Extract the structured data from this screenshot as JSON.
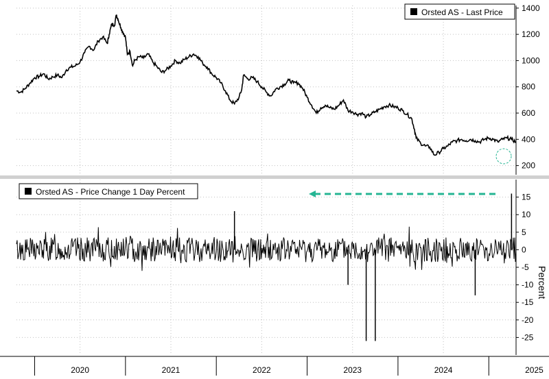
{
  "chart_data": [
    {
      "type": "line",
      "title": "",
      "legend": "Orsted AS - Last Price",
      "legend_position": "top-right",
      "y_axis_side": "right",
      "ylim": [
        130,
        1420
      ],
      "yticks": [
        200,
        400,
        600,
        800,
        1000,
        1200,
        1400
      ],
      "grid": true,
      "x_range": [
        2019.8,
        2025.3
      ],
      "points": [
        [
          2019.8,
          770
        ],
        [
          2019.85,
          760
        ],
        [
          2019.9,
          790
        ],
        [
          2019.95,
          830
        ],
        [
          2020.0,
          870
        ],
        [
          2020.05,
          880
        ],
        [
          2020.1,
          900
        ],
        [
          2020.15,
          860
        ],
        [
          2020.2,
          875
        ],
        [
          2020.25,
          890
        ],
        [
          2020.3,
          870
        ],
        [
          2020.35,
          930
        ],
        [
          2020.4,
          950
        ],
        [
          2020.45,
          960
        ],
        [
          2020.5,
          990
        ],
        [
          2020.55,
          1060
        ],
        [
          2020.6,
          1110
        ],
        [
          2020.65,
          1080
        ],
        [
          2020.7,
          1150
        ],
        [
          2020.75,
          1180
        ],
        [
          2020.8,
          1130
        ],
        [
          2020.82,
          1200
        ],
        [
          2020.85,
          1280
        ],
        [
          2020.88,
          1270
        ],
        [
          2020.9,
          1350
        ],
        [
          2020.92,
          1310
        ],
        [
          2020.95,
          1250
        ],
        [
          2020.97,
          1220
        ],
        [
          2021.0,
          1180
        ],
        [
          2021.02,
          1050
        ],
        [
          2021.05,
          1070
        ],
        [
          2021.08,
          960
        ],
        [
          2021.1,
          1000
        ],
        [
          2021.15,
          1030
        ],
        [
          2021.2,
          1020
        ],
        [
          2021.25,
          1050
        ],
        [
          2021.3,
          990
        ],
        [
          2021.35,
          950
        ],
        [
          2021.4,
          910
        ],
        [
          2021.45,
          930
        ],
        [
          2021.5,
          960
        ],
        [
          2021.55,
          1000
        ],
        [
          2021.6,
          980
        ],
        [
          2021.65,
          1010
        ],
        [
          2021.7,
          1030
        ],
        [
          2021.75,
          1050
        ],
        [
          2021.8,
          1030
        ],
        [
          2021.85,
          980
        ],
        [
          2021.9,
          950
        ],
        [
          2021.95,
          900
        ],
        [
          2022.0,
          870
        ],
        [
          2022.05,
          830
        ],
        [
          2022.1,
          770
        ],
        [
          2022.15,
          700
        ],
        [
          2022.2,
          670
        ],
        [
          2022.25,
          720
        ],
        [
          2022.28,
          780
        ],
        [
          2022.3,
          890
        ],
        [
          2022.35,
          860
        ],
        [
          2022.4,
          870
        ],
        [
          2022.45,
          840
        ],
        [
          2022.5,
          800
        ],
        [
          2022.55,
          760
        ],
        [
          2022.6,
          730
        ],
        [
          2022.65,
          780
        ],
        [
          2022.7,
          800
        ],
        [
          2022.75,
          820
        ],
        [
          2022.8,
          850
        ],
        [
          2022.85,
          830
        ],
        [
          2022.9,
          830
        ],
        [
          2022.95,
          790
        ],
        [
          2023.0,
          720
        ],
        [
          2023.05,
          660
        ],
        [
          2023.1,
          600
        ],
        [
          2023.15,
          640
        ],
        [
          2023.2,
          660
        ],
        [
          2023.25,
          640
        ],
        [
          2023.3,
          630
        ],
        [
          2023.35,
          660
        ],
        [
          2023.4,
          700
        ],
        [
          2023.45,
          620
        ],
        [
          2023.5,
          610
        ],
        [
          2023.55,
          590
        ],
        [
          2023.6,
          600
        ],
        [
          2023.65,
          570
        ],
        [
          2023.7,
          590
        ],
        [
          2023.75,
          610
        ],
        [
          2023.8,
          630
        ],
        [
          2023.85,
          650
        ],
        [
          2023.9,
          660
        ],
        [
          2023.95,
          650
        ],
        [
          2024.0,
          640
        ],
        [
          2024.05,
          620
        ],
        [
          2024.1,
          590
        ],
        [
          2024.15,
          560
        ],
        [
          2024.18,
          480
        ],
        [
          2024.2,
          410
        ],
        [
          2024.25,
          370
        ],
        [
          2024.3,
          350
        ],
        [
          2024.35,
          340
        ],
        [
          2024.4,
          280
        ],
        [
          2024.45,
          300
        ],
        [
          2024.5,
          330
        ],
        [
          2024.55,
          350
        ],
        [
          2024.6,
          380
        ],
        [
          2024.65,
          390
        ],
        [
          2024.7,
          400
        ],
        [
          2024.75,
          390
        ],
        [
          2024.8,
          400
        ],
        [
          2024.85,
          390
        ],
        [
          2024.9,
          380
        ],
        [
          2024.95,
          400
        ],
        [
          2025.0,
          410
        ],
        [
          2025.05,
          400
        ],
        [
          2025.1,
          380
        ],
        [
          2025.15,
          400
        ],
        [
          2025.2,
          410
        ],
        [
          2025.25,
          400
        ],
        [
          2025.3,
          380
        ]
      ]
    },
    {
      "type": "line",
      "title": "",
      "legend": "Orsted AS - Price Change 1 Day Percent",
      "legend_position": "top-left",
      "y_axis_side": "right",
      "ylabel": "Percent",
      "ylim": [
        -30,
        20
      ],
      "yticks": [
        15,
        10,
        5,
        0,
        -5,
        -10,
        -15,
        -20,
        -25
      ],
      "grid": true,
      "x_range": [
        2019.8,
        2025.3
      ],
      "spikes": [
        {
          "x": 2022.2,
          "value": 11
        },
        {
          "x": 2023.45,
          "value": -10
        },
        {
          "x": 2023.65,
          "value": -26
        },
        {
          "x": 2023.75,
          "value": -26
        },
        {
          "x": 2024.85,
          "value": -13
        },
        {
          "x": 2025.25,
          "value": 16
        }
      ],
      "annotation": "dashed arrow pointing left"
    }
  ],
  "x_axis": {
    "labels": [
      {
        "text": "2020",
        "x": 2020.0
      },
      {
        "text": "2021",
        "x": 2021.0
      },
      {
        "text": "2022",
        "x": 2022.0
      },
      {
        "text": "2023",
        "x": 2023.0
      },
      {
        "text": "2024",
        "x": 2024.0
      },
      {
        "text": "2025",
        "x": 2025.0
      }
    ]
  },
  "colors": {
    "series": "#000000",
    "grid": "#c0c0c0",
    "annotation": "#25b593"
  }
}
